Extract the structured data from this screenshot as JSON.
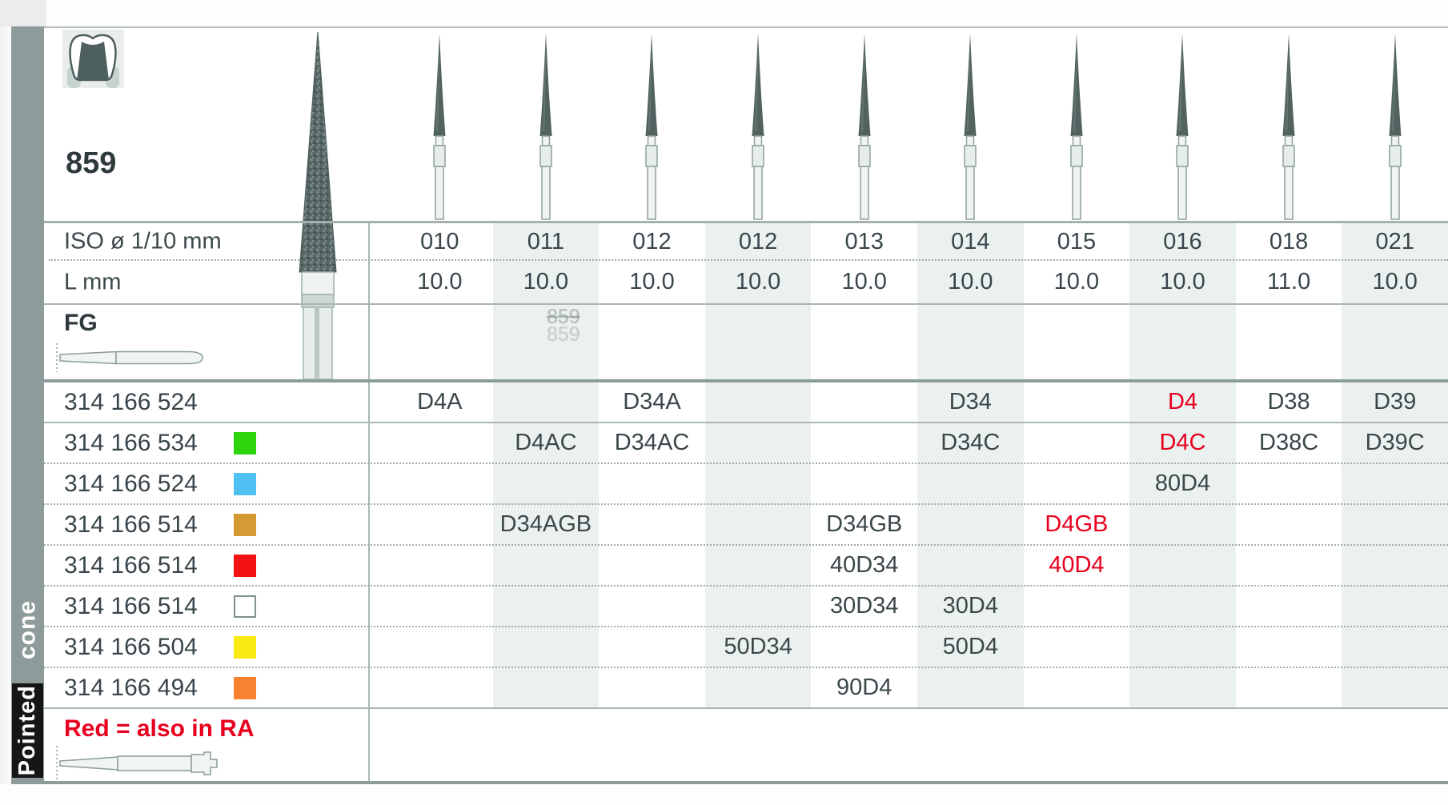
{
  "header": {
    "family_code": "859"
  },
  "sidebar": {
    "label_top": "cone",
    "label_bottom": "Pointed"
  },
  "spec_rows": {
    "iso_label": "ISO ø 1/10 mm",
    "length_label": "L mm",
    "shank_type": "FG"
  },
  "watermark": {
    "line1": "859",
    "line2": "859"
  },
  "columns": {
    "iso_diameters": [
      "010",
      "011",
      "012",
      "012",
      "013",
      "014",
      "015",
      "016",
      "018",
      "021"
    ],
    "lengths_mm": [
      "10.0",
      "10.0",
      "10.0",
      "10.0",
      "10.0",
      "10.0",
      "10.0",
      "10.0",
      "11.0",
      "10.0"
    ]
  },
  "order_rows": [
    {
      "order_no": "314 166 524",
      "chip": null,
      "cells": [
        {
          "col": 1,
          "code": "D4A"
        },
        {
          "col": 3,
          "code": "D34A"
        },
        {
          "col": 6,
          "code": "D34"
        },
        {
          "col": 8,
          "code": "D4",
          "red": true
        },
        {
          "col": 9,
          "code": "D38"
        },
        {
          "col": 10,
          "code": "D39"
        }
      ]
    },
    {
      "order_no": "314 166 534",
      "chip": "#2ed50c",
      "cells": [
        {
          "col": 2,
          "code": "D4AC"
        },
        {
          "col": 3,
          "code": "D34AC"
        },
        {
          "col": 6,
          "code": "D34C"
        },
        {
          "col": 8,
          "code": "D4C",
          "red": true
        },
        {
          "col": 9,
          "code": "D38C"
        },
        {
          "col": 10,
          "code": "D39C"
        }
      ]
    },
    {
      "order_no": "314 166 524",
      "chip": "#4ec1f2",
      "cells": [
        {
          "col": 8,
          "code": "80D4"
        }
      ]
    },
    {
      "order_no": "314 166 514",
      "chip": "#d49a35",
      "cells": [
        {
          "col": 2,
          "code": "D34AGB"
        },
        {
          "col": 5,
          "code": "D34GB"
        },
        {
          "col": 7,
          "code": "D4GB",
          "red": true
        }
      ]
    },
    {
      "order_no": "314 166 514",
      "chip": "#f31212",
      "cells": [
        {
          "col": 5,
          "code": "40D34"
        },
        {
          "col": 7,
          "code": "40D4",
          "red": true
        }
      ]
    },
    {
      "order_no": "314 166 514",
      "chip": "white",
      "cells": [
        {
          "col": 5,
          "code": "30D34"
        },
        {
          "col": 6,
          "code": "30D4"
        }
      ]
    },
    {
      "order_no": "314 166 504",
      "chip": "#f9e912",
      "cells": [
        {
          "col": 4,
          "code": "50D34"
        },
        {
          "col": 6,
          "code": "50D4"
        }
      ]
    },
    {
      "order_no": "314 166 494",
      "chip": "#f8822f",
      "cells": [
        {
          "col": 5,
          "code": "90D4"
        }
      ]
    }
  ],
  "footnote": {
    "text": "Red = also in RA"
  },
  "accents": {
    "red": "#e8001f",
    "band": "#ebf1ef",
    "sidebar": "#8d9b9a"
  }
}
